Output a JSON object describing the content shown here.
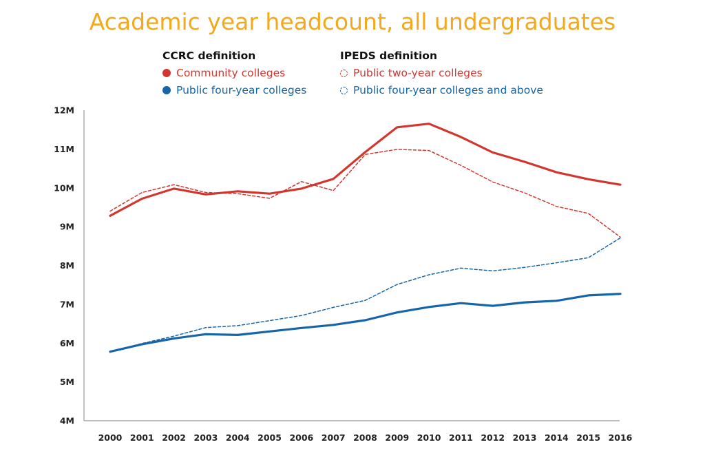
{
  "chart_data": {
    "type": "line",
    "title": "Academic year headcount, all undergraduates",
    "legend_groups": [
      {
        "heading": "CCRC definition",
        "entries": [
          "Community colleges",
          "Public four-year colleges"
        ]
      },
      {
        "heading": "IPEDS definition",
        "entries": [
          "Public two-year colleges",
          "Public four-year colleges and above"
        ]
      }
    ],
    "x": [
      2000,
      2001,
      2002,
      2003,
      2004,
      2005,
      2006,
      2007,
      2008,
      2009,
      2010,
      2011,
      2012,
      2013,
      2014,
      2015,
      2016
    ],
    "y_ticks": [
      "4M",
      "5M",
      "6M",
      "7M",
      "8M",
      "9M",
      "10M",
      "11M",
      "12M"
    ],
    "ylim": [
      4,
      12
    ],
    "y_unit": "M",
    "series": [
      {
        "name": "Community colleges",
        "style": "solid",
        "color": "#D2372F",
        "values": [
          9.28,
          9.72,
          9.98,
          9.83,
          9.91,
          9.85,
          9.98,
          10.23,
          10.92,
          11.56,
          11.65,
          11.31,
          10.91,
          10.67,
          10.4,
          10.22,
          10.08
        ]
      },
      {
        "name": "Public four-year colleges",
        "style": "solid",
        "color": "#1565A8",
        "values": [
          5.78,
          5.97,
          6.12,
          6.23,
          6.21,
          6.3,
          6.39,
          6.47,
          6.59,
          6.79,
          6.93,
          7.03,
          6.96,
          7.05,
          7.09,
          7.23,
          7.27
        ]
      },
      {
        "name": "Public two-year colleges",
        "style": "dashed",
        "color": "#D2372F",
        "values": [
          9.4,
          9.88,
          10.08,
          9.88,
          9.85,
          9.73,
          10.16,
          9.93,
          10.86,
          10.99,
          10.96,
          10.58,
          10.15,
          9.87,
          9.52,
          9.34,
          8.73
        ]
      },
      {
        "name": "Public four-year colleges and above",
        "style": "dashed",
        "color": "#1565A8",
        "values": [
          5.78,
          5.99,
          6.18,
          6.4,
          6.45,
          6.58,
          6.71,
          6.92,
          7.1,
          7.51,
          7.76,
          7.93,
          7.86,
          7.95,
          8.07,
          8.2,
          8.71
        ]
      }
    ],
    "grid": false
  }
}
